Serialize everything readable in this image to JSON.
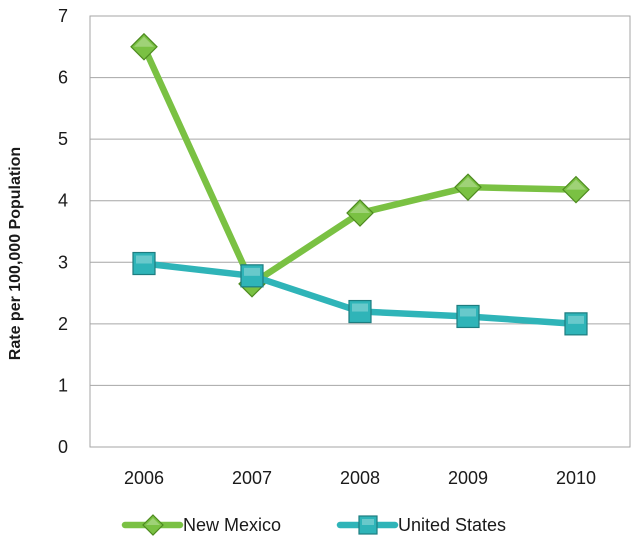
{
  "chart_data": {
    "type": "line",
    "title": "",
    "xlabel": "",
    "ylabel": "Rate per 100,000 Population",
    "categories": [
      "2006",
      "2007",
      "2008",
      "2009",
      "2010"
    ],
    "ylim": [
      0,
      7
    ],
    "yticks": [
      0,
      1,
      2,
      3,
      4,
      5,
      6,
      7
    ],
    "grid": true,
    "legend_position": "bottom",
    "series": [
      {
        "name": "New Mexico",
        "values": [
          6.5,
          2.65,
          3.8,
          4.22,
          4.18
        ],
        "color": "#7ac143",
        "marker": "diamond"
      },
      {
        "name": "United States",
        "values": [
          2.98,
          2.78,
          2.2,
          2.12,
          2.0
        ],
        "color": "#2fb4b8",
        "marker": "square"
      }
    ]
  }
}
